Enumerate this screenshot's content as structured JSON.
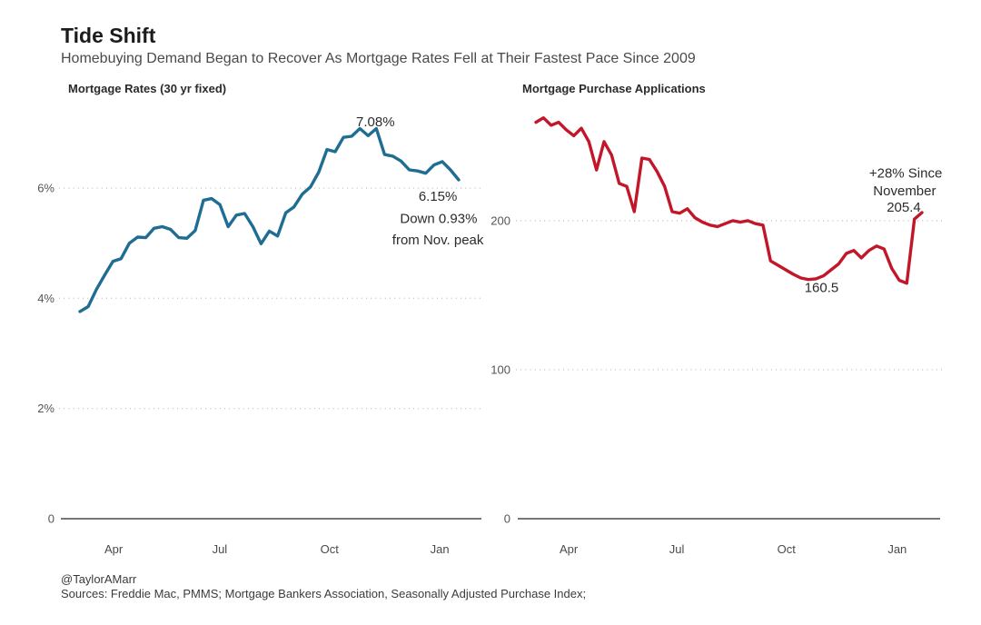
{
  "page": {
    "title": "Tide Shift",
    "subtitle": "Homebuying Demand Began to Recover As Mortgage Rates Fell at Their Fastest Pace Since 2009",
    "footer_handle": "@TaylorAMarr",
    "footer_sources": "Sources: Freddie Mac, PMMS; Mortgage Bankers Association, Seasonally Adjusted Purchase Index;"
  },
  "colors": {
    "rates_line": "#206d93",
    "applications_line": "#c21629",
    "gridline": "#c6c6c6",
    "axis": "#777777"
  },
  "chart_data": [
    {
      "type": "line",
      "title": "Mortgage Rates (30 yr fixed)",
      "color": "#206d93",
      "grid": "dotted horizontal",
      "ylim": [
        0,
        7.6
      ],
      "y_ticks": [
        {
          "value": 0,
          "label": "0"
        },
        {
          "value": 2,
          "label": "2%"
        },
        {
          "value": 4,
          "label": "4%"
        },
        {
          "value": 6,
          "label": "6%"
        }
      ],
      "x_ticks": [
        {
          "f": 0.089,
          "label": "Apr"
        },
        {
          "f": 0.369,
          "label": "Jul"
        },
        {
          "f": 0.659,
          "label": "Oct"
        },
        {
          "f": 0.95,
          "label": "Jan"
        }
      ],
      "x_range_note": "weekly, Mar 2022 - Jan 2023",
      "values": [
        3.76,
        3.85,
        4.16,
        4.42,
        4.67,
        4.72,
        5.0,
        5.11,
        5.1,
        5.27,
        5.3,
        5.25,
        5.1,
        5.09,
        5.23,
        5.78,
        5.81,
        5.7,
        5.3,
        5.51,
        5.54,
        5.3,
        4.99,
        5.22,
        5.13,
        5.55,
        5.66,
        5.89,
        6.02,
        6.29,
        6.7,
        6.66,
        6.92,
        6.94,
        7.08,
        6.95,
        7.08,
        6.61,
        6.58,
        6.49,
        6.33,
        6.31,
        6.27,
        6.42,
        6.48,
        6.33,
        6.15
      ],
      "annotations": [
        {
          "text": "7.08%",
          "xf": 0.78,
          "yv": 7.12
        },
        {
          "text": "6.15%",
          "xf": 0.945,
          "yv": 5.77
        },
        {
          "text": "Down 0.93%",
          "xf": 0.947,
          "yv": 5.37
        },
        {
          "text": "from Nov. peak",
          "xf": 0.945,
          "yv": 4.98
        }
      ]
    },
    {
      "type": "line",
      "title": "Mortgage Purchase Applications",
      "color": "#c21629",
      "grid": "dotted horizontal",
      "ylim": [
        0,
        281
      ],
      "y_ticks": [
        {
          "value": 0,
          "label": "0"
        },
        {
          "value": 100,
          "label": "100"
        },
        {
          "value": 200,
          "label": "200"
        }
      ],
      "x_ticks": [
        {
          "f": 0.085,
          "label": "Apr"
        },
        {
          "f": 0.365,
          "label": "Jul"
        },
        {
          "f": 0.649,
          "label": "Oct"
        },
        {
          "f": 0.936,
          "label": "Jan"
        }
      ],
      "x_range_note": "weekly, Mar 2022 - Jan 2023",
      "values": [
        266,
        269,
        264,
        266,
        261,
        257,
        262,
        253,
        234,
        253,
        244,
        225,
        223,
        206,
        242,
        241,
        233,
        223,
        206,
        205,
        208,
        202,
        199,
        197,
        196,
        198,
        200,
        199,
        200,
        198,
        197,
        173,
        170,
        167,
        164,
        161.5,
        160.5,
        161,
        163,
        167,
        171,
        178,
        180,
        175,
        180,
        183,
        181,
        168,
        160,
        158,
        201,
        205.4
      ],
      "annotations": [
        {
          "text": "+28% Since",
          "xf": 0.958,
          "yv": 229
        },
        {
          "text": "November",
          "xf": 0.955,
          "yv": 217
        },
        {
          "text": "205.4",
          "xf": 0.953,
          "yv": 206
        },
        {
          "text": "160.5",
          "xf": 0.74,
          "yv": 152
        }
      ]
    }
  ]
}
